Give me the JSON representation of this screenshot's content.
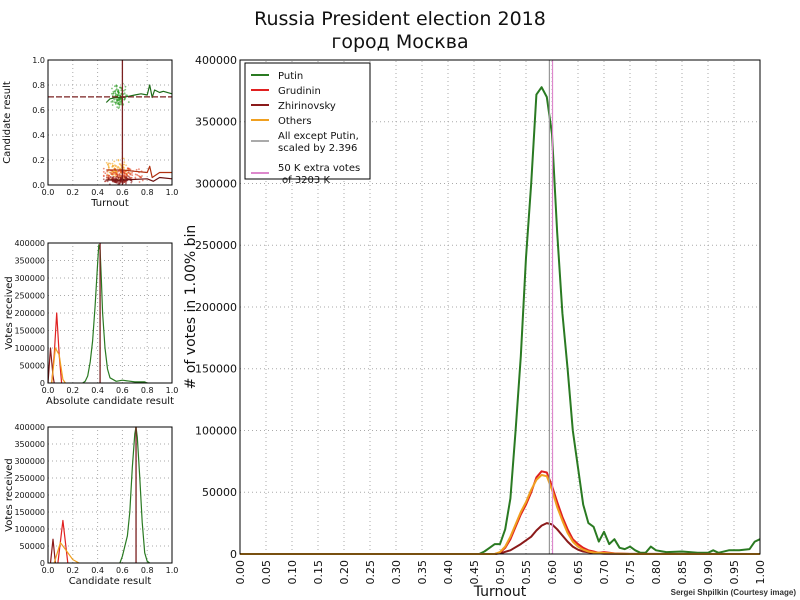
{
  "chart_data": [
    {
      "id": "main",
      "type": "line",
      "title": "Russia President election 2018",
      "subtitle": "город Москва",
      "xlabel": "Turnout",
      "ylabel": "# of votes in 1.00% bin",
      "xlim": [
        0,
        1
      ],
      "ylim": [
        0,
        400000
      ],
      "xticks": [
        "0.00",
        "0.05",
        "0.10",
        "0.15",
        "0.20",
        "0.25",
        "0.30",
        "0.35",
        "0.40",
        "0.45",
        "0.50",
        "0.55",
        "0.60",
        "0.65",
        "0.70",
        "0.75",
        "0.80",
        "0.85",
        "0.90",
        "0.95",
        "1.00"
      ],
      "yticks": [
        "0",
        "50000",
        "100000",
        "150000",
        "200000",
        "250000",
        "300000",
        "350000",
        "400000"
      ],
      "grid": true,
      "legend_position": "top-left",
      "vlines": [
        {
          "x": 0.595,
          "color": "#999999"
        },
        {
          "x": 0.601,
          "color": "#dd88cc"
        }
      ],
      "series": [
        {
          "name": "Putin",
          "color": "#2a7a22",
          "x": [
            0.0,
            0.46,
            0.47,
            0.48,
            0.49,
            0.5,
            0.51,
            0.52,
            0.53,
            0.54,
            0.55,
            0.56,
            0.57,
            0.58,
            0.59,
            0.6,
            0.61,
            0.62,
            0.63,
            0.64,
            0.65,
            0.66,
            0.67,
            0.68,
            0.69,
            0.7,
            0.71,
            0.72,
            0.73,
            0.74,
            0.75,
            0.76,
            0.77,
            0.78,
            0.79,
            0.8,
            0.82,
            0.85,
            0.88,
            0.9,
            0.91,
            0.92,
            0.94,
            0.96,
            0.98,
            0.99,
            1.0
          ],
          "y": [
            0,
            0,
            2000,
            5000,
            8000,
            8000,
            20000,
            45000,
            100000,
            160000,
            240000,
            300000,
            372000,
            378000,
            370000,
            340000,
            260000,
            195000,
            150000,
            100000,
            70000,
            40000,
            25000,
            22000,
            10000,
            18000,
            8000,
            12000,
            5000,
            4000,
            6000,
            3000,
            1000,
            1000,
            6000,
            3000,
            1500,
            2000,
            1000,
            1000,
            3000,
            1000,
            3000,
            3000,
            4000,
            10000,
            12000
          ]
        },
        {
          "name": "Grudinin",
          "color": "#e02020",
          "x": [
            0.0,
            0.49,
            0.5,
            0.51,
            0.52,
            0.53,
            0.54,
            0.55,
            0.56,
            0.57,
            0.58,
            0.59,
            0.6,
            0.61,
            0.62,
            0.63,
            0.64,
            0.65,
            0.66,
            0.67,
            0.68,
            0.69,
            0.7,
            0.72,
            0.75,
            1.0
          ],
          "y": [
            0,
            0,
            1000,
            5000,
            12000,
            22000,
            32000,
            40000,
            50000,
            62000,
            67000,
            66000,
            55000,
            42000,
            30000,
            20000,
            12000,
            8000,
            5000,
            3000,
            2000,
            1000,
            1500,
            500,
            0,
            0
          ]
        },
        {
          "name": "Zhirinovsky",
          "color": "#8b1a1a",
          "x": [
            0.0,
            0.49,
            0.5,
            0.52,
            0.54,
            0.56,
            0.57,
            0.58,
            0.59,
            0.6,
            0.61,
            0.62,
            0.63,
            0.64,
            0.65,
            0.66,
            0.68,
            0.7,
            1.0
          ],
          "y": [
            0,
            0,
            500,
            3000,
            8000,
            14000,
            19000,
            23000,
            25000,
            24000,
            20000,
            15000,
            10000,
            6000,
            3500,
            2000,
            800,
            200,
            0
          ]
        },
        {
          "name": "Others",
          "color": "#f0a020",
          "x": [
            0.0,
            0.49,
            0.5,
            0.51,
            0.52,
            0.53,
            0.54,
            0.55,
            0.56,
            0.57,
            0.58,
            0.59,
            0.6,
            0.61,
            0.62,
            0.63,
            0.64,
            0.65,
            0.66,
            0.67,
            0.68,
            0.7,
            0.72,
            0.75,
            1.0
          ],
          "y": [
            0,
            0,
            1500,
            6000,
            14000,
            24000,
            34000,
            42000,
            52000,
            60000,
            64000,
            63000,
            52000,
            38000,
            27000,
            17000,
            10000,
            6000,
            3500,
            2000,
            1200,
            800,
            300,
            0,
            0
          ]
        },
        {
          "name": "All except Putin,\nscaled by 2.396",
          "color": "#aaaaaa",
          "x": [],
          "y": []
        },
        {
          "name": "50 K extra votes\n of 3203 K",
          "color": "#dd88cc",
          "x": [],
          "y": []
        }
      ],
      "legend": [
        "Putin",
        "Grudinin",
        "Zhirinovsky",
        "Others",
        "All except Putin,",
        "scaled by 2.396",
        "50 K extra votes",
        "of 3203 K"
      ]
    },
    {
      "id": "scatter",
      "type": "scatter",
      "xlabel": "Turnout",
      "ylabel": "Candidate result",
      "xlim": [
        0,
        1
      ],
      "ylim": [
        0,
        1
      ],
      "xticks": [
        "0.0",
        "0.2",
        "0.4",
        "0.6",
        "0.8",
        "1.0"
      ],
      "yticks": [
        "0.0",
        "0.2",
        "0.4",
        "0.6",
        "0.8",
        "1.0"
      ],
      "hline": 0.705,
      "vline": 0.6,
      "clusters": [
        {
          "name": "Putin",
          "color": "#2a9a22",
          "cx": 0.58,
          "cy": 0.71,
          "sx": 0.03,
          "sy": 0.04
        },
        {
          "name": "Others",
          "color": "#f5a623",
          "cx": 0.57,
          "cy": 0.12,
          "sx": 0.04,
          "sy": 0.04
        },
        {
          "name": "Grudinin",
          "color": "#e04020",
          "cx": 0.6,
          "cy": 0.08,
          "sx": 0.08,
          "sy": 0.03
        },
        {
          "name": "Zhirinovsky",
          "color": "#8b1a1a",
          "cx": 0.58,
          "cy": 0.04,
          "sx": 0.05,
          "sy": 0.015
        }
      ],
      "series": [
        {
          "name": "Putin",
          "color": "#1d6b18",
          "x": [
            0.47,
            0.5,
            0.55,
            0.6,
            0.65,
            0.7,
            0.75,
            0.8,
            0.82,
            0.84,
            0.86,
            0.9,
            0.93,
            1.0
          ],
          "y": [
            0.66,
            0.69,
            0.7,
            0.7,
            0.71,
            0.72,
            0.73,
            0.72,
            0.8,
            0.7,
            0.76,
            0.74,
            0.75,
            0.73
          ]
        },
        {
          "name": "Grudinin",
          "color": "#b03010",
          "x": [
            0.47,
            0.55,
            0.6,
            0.7,
            0.8,
            0.82,
            0.84,
            0.9,
            1.0
          ],
          "y": [
            0.12,
            0.12,
            0.12,
            0.11,
            0.1,
            0.15,
            0.06,
            0.1,
            0.1
          ]
        },
        {
          "name": "Zhirinovsky",
          "color": "#6a1010",
          "x": [
            0.47,
            0.6,
            0.8,
            0.85,
            0.9,
            1.0
          ],
          "y": [
            0.04,
            0.04,
            0.05,
            0.03,
            0.06,
            0.05
          ]
        }
      ]
    },
    {
      "id": "absolute",
      "type": "line",
      "xlabel": "Absolute candidate result",
      "ylabel": "Votes received",
      "xlim": [
        0,
        1
      ],
      "ylim": [
        0,
        400000
      ],
      "xticks": [
        "0.0",
        "0.2",
        "0.4",
        "0.6",
        "0.8",
        "1.0"
      ],
      "yticks": [
        "0",
        "50000",
        "100000",
        "150000",
        "200000",
        "250000",
        "300000",
        "350000",
        "400000"
      ],
      "vline": 0.42,
      "series": [
        {
          "name": "Putin",
          "color": "#2a7a22",
          "x": [
            0.28,
            0.3,
            0.32,
            0.34,
            0.36,
            0.38,
            0.4,
            0.41,
            0.42,
            0.43,
            0.44,
            0.46,
            0.48,
            0.5,
            0.55,
            0.6,
            0.7,
            0.78,
            0.8
          ],
          "y": [
            0,
            5000,
            20000,
            60000,
            120000,
            220000,
            340000,
            395000,
            380000,
            300000,
            200000,
            100000,
            40000,
            15000,
            5000,
            8000,
            3000,
            3000,
            0
          ]
        },
        {
          "name": "Grudinin",
          "color": "#e02020",
          "x": [
            0.03,
            0.05,
            0.07,
            0.09,
            0.11
          ],
          "y": [
            0,
            80000,
            200000,
            80000,
            0
          ]
        },
        {
          "name": "Zhirinovsky",
          "color": "#8b1a1a",
          "x": [
            0.0,
            0.02,
            0.04,
            0.05
          ],
          "y": [
            0,
            100000,
            20000,
            0
          ]
        },
        {
          "name": "Others",
          "color": "#f0a020",
          "x": [
            0.03,
            0.06,
            0.09,
            0.12,
            0.14
          ],
          "y": [
            0,
            100000,
            80000,
            10000,
            0
          ]
        }
      ]
    },
    {
      "id": "relative",
      "type": "line",
      "xlabel": "Candidate result",
      "ylabel": "Votes received",
      "xlim": [
        0,
        1
      ],
      "ylim": [
        0,
        400000
      ],
      "xticks": [
        "0.0",
        "0.2",
        "0.4",
        "0.6",
        "0.8",
        "1.0"
      ],
      "yticks": [
        "0",
        "50000",
        "100000",
        "150000",
        "200000",
        "250000",
        "300000",
        "350000",
        "400000"
      ],
      "vline": 0.71,
      "series": [
        {
          "name": "Putin",
          "color": "#2a7a22",
          "x": [
            0.58,
            0.6,
            0.62,
            0.64,
            0.66,
            0.68,
            0.7,
            0.71,
            0.72,
            0.74,
            0.76,
            0.78,
            0.8,
            0.82
          ],
          "y": [
            0,
            20000,
            50000,
            80000,
            150000,
            280000,
            380000,
            400000,
            370000,
            250000,
            120000,
            30000,
            5000,
            0
          ]
        },
        {
          "name": "Zhirinovsky",
          "color": "#8b1a1a",
          "x": [
            0.02,
            0.04,
            0.06
          ],
          "y": [
            0,
            70000,
            0
          ]
        },
        {
          "name": "Grudinin",
          "color": "#e02020",
          "x": [
            0.08,
            0.12,
            0.16
          ],
          "y": [
            0,
            125000,
            0
          ]
        },
        {
          "name": "Others",
          "color": "#f0a020",
          "x": [
            0.05,
            0.1,
            0.14,
            0.2,
            0.25
          ],
          "y": [
            0,
            60000,
            40000,
            10000,
            0
          ]
        }
      ]
    }
  ],
  "credit": "Sergei Shpilkin (Courtesy image)"
}
